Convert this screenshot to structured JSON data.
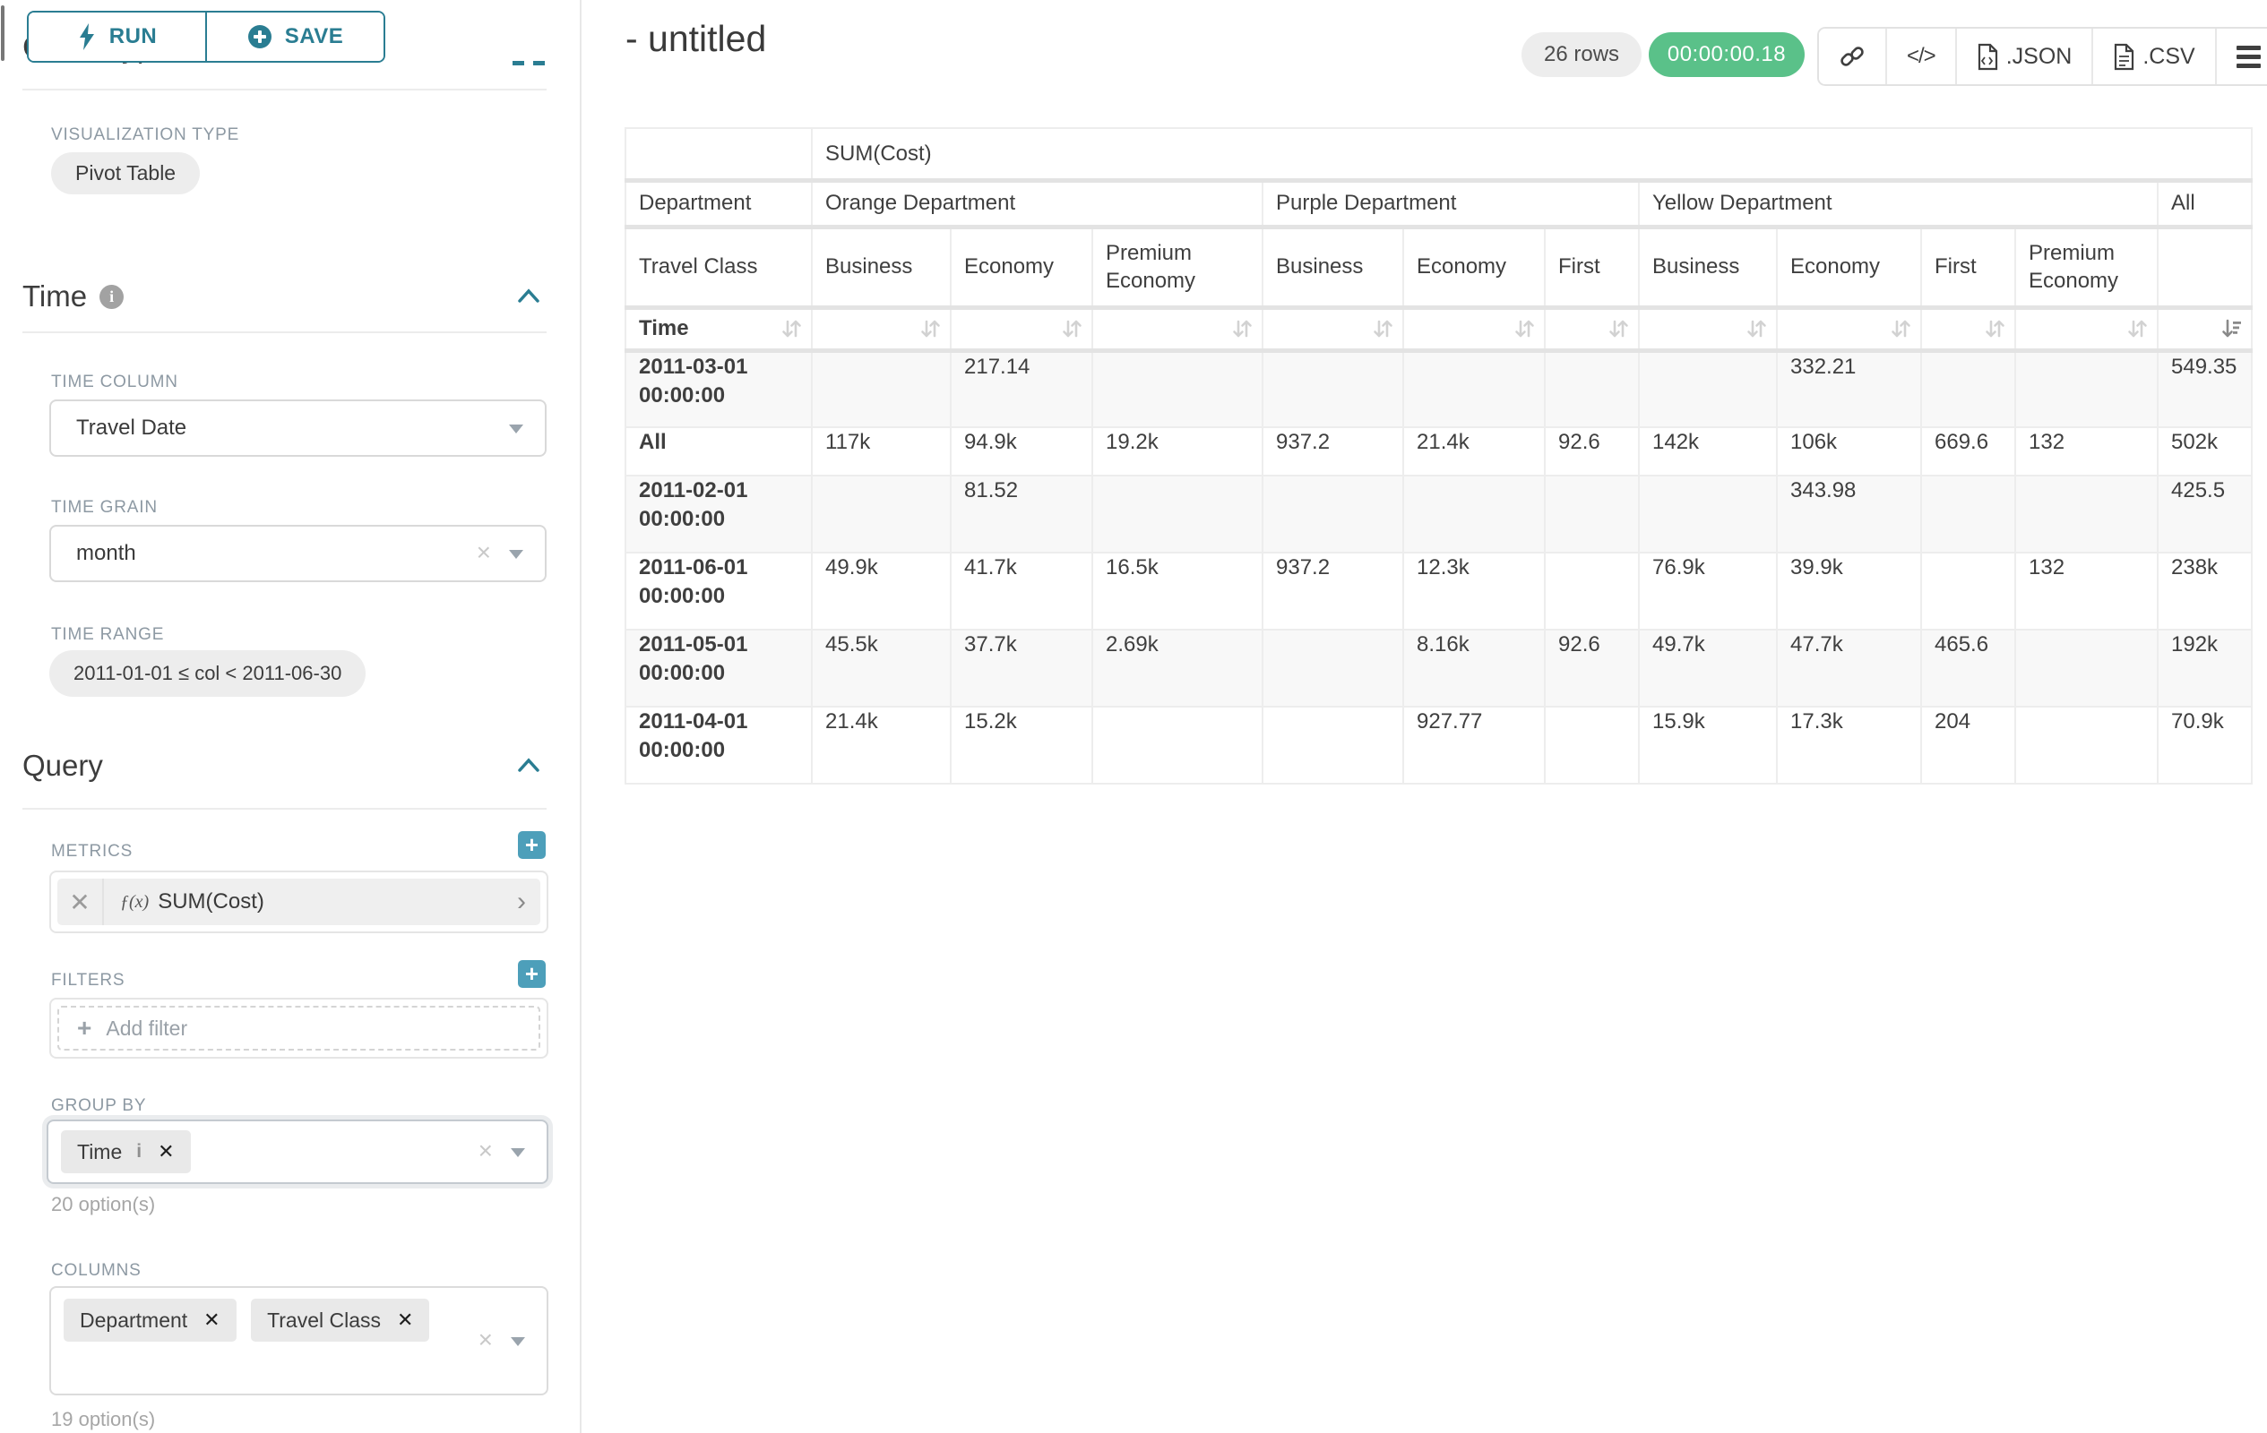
{
  "glyphs": {
    "remove": "✕",
    "clear": "×",
    "plus": "+",
    "chevron_right": "›",
    "add": "+"
  },
  "sidebar": {
    "run_label": "RUN",
    "save_label": "SAVE",
    "chart_type_heading": "Chart Type",
    "visualization": {
      "label": "VISUALIZATION TYPE",
      "value": "Pivot Table"
    },
    "time": {
      "heading": "Time",
      "column_label": "TIME COLUMN",
      "column_value": "Travel Date",
      "grain_label": "TIME GRAIN",
      "grain_value": "month",
      "range_label": "TIME RANGE",
      "range_value": "2011-01-01 ≤ col < 2011-06-30"
    },
    "query": {
      "heading": "Query",
      "metrics_label": "METRICS",
      "metric": {
        "fx": "ƒ(x)",
        "name": "SUM(Cost)"
      },
      "filters_label": "FILTERS",
      "add_filter": "Add filter",
      "group_by_label": "GROUP BY",
      "group_by_chip": {
        "label": "Time",
        "info": "i"
      },
      "group_by_hint": "20 option(s)",
      "columns_label": "COLUMNS",
      "columns_chips": [
        "Department",
        "Travel Class"
      ],
      "columns_hint": "19 option(s)"
    }
  },
  "header": {
    "title": "- untitled",
    "rows_badge": "26 rows",
    "timer": "00:00:00.18",
    "toolbar": {
      "code_glyph": "</>",
      "json_label": ".JSON",
      "csv_label": ".CSV"
    }
  },
  "pivot_table": {
    "metric_header": "SUM(Cost)",
    "department_label": "Department",
    "travel_class_label": "Travel Class",
    "time_label": "Time",
    "groups": [
      {
        "name": "Orange Department",
        "cols": [
          "Business",
          "Economy",
          "Premium Economy"
        ]
      },
      {
        "name": "Purple Department",
        "cols": [
          "Business",
          "Economy",
          "First"
        ]
      },
      {
        "name": "Yellow Department",
        "cols": [
          "Business",
          "Economy",
          "First",
          "Premium Economy"
        ]
      },
      {
        "name": "All",
        "cols": [
          ""
        ]
      }
    ],
    "rows": [
      {
        "label": "2011-03-01 00:00:00",
        "values": [
          "",
          "217.14",
          "",
          "",
          "",
          "",
          "",
          "332.21",
          "",
          "",
          "549.35"
        ]
      },
      {
        "label": "All",
        "values": [
          "117k",
          "94.9k",
          "19.2k",
          "937.2",
          "21.4k",
          "92.6",
          "142k",
          "106k",
          "669.6",
          "132",
          "502k"
        ]
      },
      {
        "label": "2011-02-01 00:00:00",
        "values": [
          "",
          "81.52",
          "",
          "",
          "",
          "",
          "",
          "343.98",
          "",
          "",
          "425.5"
        ]
      },
      {
        "label": "2011-06-01 00:00:00",
        "values": [
          "49.9k",
          "41.7k",
          "16.5k",
          "937.2",
          "12.3k",
          "",
          "76.9k",
          "39.9k",
          "",
          "132",
          "238k"
        ]
      },
      {
        "label": "2011-05-01 00:00:00",
        "values": [
          "45.5k",
          "37.7k",
          "2.69k",
          "",
          "8.16k",
          "92.6",
          "49.7k",
          "47.7k",
          "465.6",
          "",
          "192k"
        ]
      },
      {
        "label": "2011-04-01 00:00:00",
        "values": [
          "21.4k",
          "15.2k",
          "",
          "",
          "927.77",
          "",
          "15.9k",
          "17.3k",
          "204",
          "",
          "70.9k"
        ]
      }
    ]
  }
}
